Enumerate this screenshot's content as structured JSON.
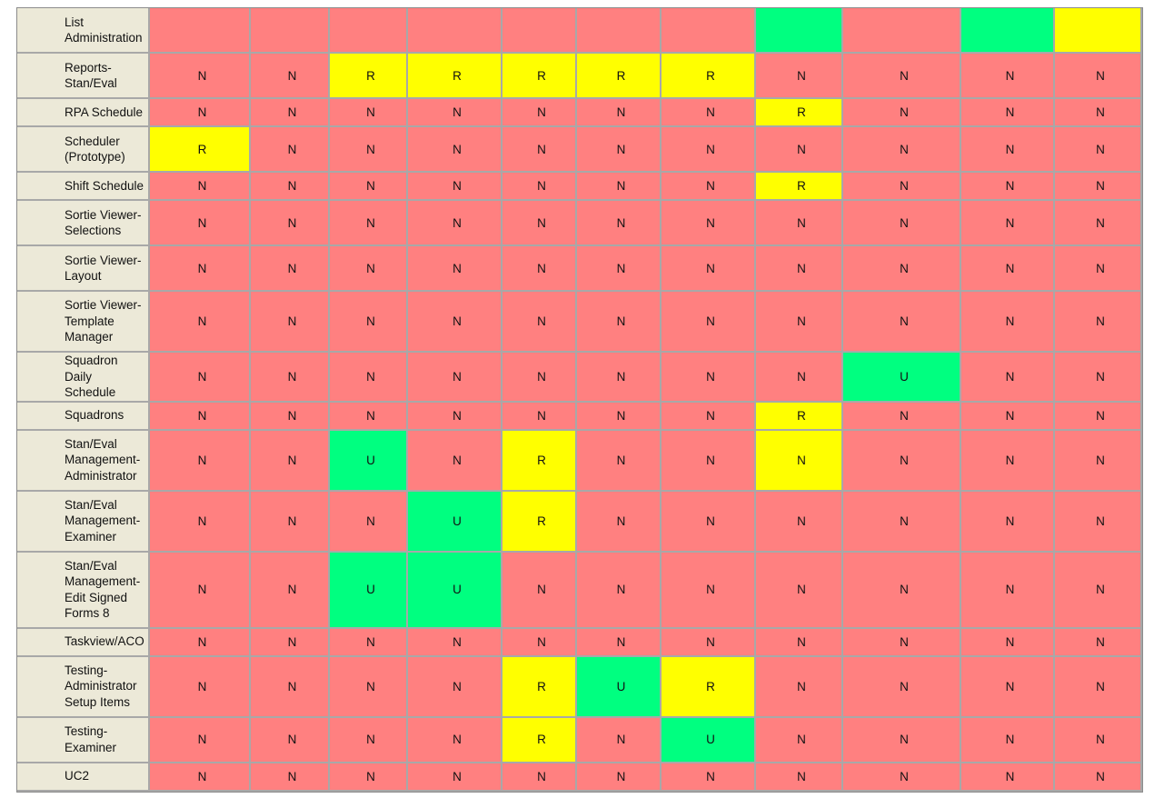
{
  "legend_colors": {
    "N": "#ff8080",
    "R": "#ffff00",
    "U": "#00ff80"
  },
  "rows": [
    {
      "name": "List\nAdministration",
      "cells": [
        "",
        "",
        "",
        "",
        "",
        "",
        "",
        "",
        "",
        "",
        ""
      ],
      "fill": [
        "N",
        "N",
        "N",
        "N",
        "N",
        "N",
        "N",
        "U",
        "N",
        "U",
        "R"
      ]
    },
    {
      "name": "Reports-\nStan/Eval",
      "cells": [
        "N",
        "N",
        "R",
        "R",
        "R",
        "R",
        "R",
        "N",
        "N",
        "N",
        "N"
      ]
    },
    {
      "name": "RPA Schedule",
      "cells": [
        "N",
        "N",
        "N",
        "N",
        "N",
        "N",
        "N",
        "R",
        "N",
        "N",
        "N"
      ]
    },
    {
      "name": "Scheduler\n(Prototype)",
      "cells": [
        "R",
        "N",
        "N",
        "N",
        "N",
        "N",
        "N",
        "N",
        "N",
        "N",
        "N"
      ]
    },
    {
      "name": "Shift Schedule",
      "cells": [
        "N",
        "N",
        "N",
        "N",
        "N",
        "N",
        "N",
        "R",
        "N",
        "N",
        "N"
      ]
    },
    {
      "name": "Sortie Viewer-\nSelections",
      "cells": [
        "N",
        "N",
        "N",
        "N",
        "N",
        "N",
        "N",
        "N",
        "N",
        "N",
        "N"
      ]
    },
    {
      "name": "Sortie Viewer-\nLayout",
      "cells": [
        "N",
        "N",
        "N",
        "N",
        "N",
        "N",
        "N",
        "N",
        "N",
        "N",
        "N"
      ]
    },
    {
      "name": "Sortie Viewer-\nTemplate\nManager",
      "cells": [
        "N",
        "N",
        "N",
        "N",
        "N",
        "N",
        "N",
        "N",
        "N",
        "N",
        "N"
      ]
    },
    {
      "name": "Squadron Daily\nSchedule",
      "cells": [
        "N",
        "N",
        "N",
        "N",
        "N",
        "N",
        "N",
        "N",
        "U",
        "N",
        "N"
      ]
    },
    {
      "name": "Squadrons",
      "cells": [
        "N",
        "N",
        "N",
        "N",
        "N",
        "N",
        "N",
        "R",
        "N",
        "N",
        "N"
      ]
    },
    {
      "name": "Stan/Eval\nManagement-\nAdministrator",
      "cells": [
        "N",
        "N",
        "U",
        "N",
        "R",
        "N",
        "N",
        "N",
        "N",
        "N",
        "N"
      ],
      "fill": [
        "N",
        "N",
        "U",
        "N",
        "R",
        "N",
        "N",
        "R",
        "N",
        "N",
        "N"
      ]
    },
    {
      "name": "Stan/Eval\nManagement-\nExaminer",
      "cells": [
        "N",
        "N",
        "N",
        "U",
        "R",
        "N",
        "N",
        "N",
        "N",
        "N",
        "N"
      ]
    },
    {
      "name": "Stan/Eval\nManagement-\nEdit Signed\nForms 8",
      "cells": [
        "N",
        "N",
        "U",
        "U",
        "N",
        "N",
        "N",
        "N",
        "N",
        "N",
        "N"
      ]
    },
    {
      "name": "Taskview/ACO",
      "cells": [
        "N",
        "N",
        "N",
        "N",
        "N",
        "N",
        "N",
        "N",
        "N",
        "N",
        "N"
      ]
    },
    {
      "name": "Testing-\nAdministrator\nSetup Items",
      "cells": [
        "N",
        "N",
        "N",
        "N",
        "R",
        "U",
        "R",
        "N",
        "N",
        "N",
        "N"
      ]
    },
    {
      "name": "Testing-\nExaminer",
      "cells": [
        "N",
        "N",
        "N",
        "N",
        "R",
        "N",
        "U",
        "N",
        "N",
        "N",
        "N"
      ]
    },
    {
      "name": "UC2",
      "cells": [
        "N",
        "N",
        "N",
        "N",
        "N",
        "N",
        "N",
        "N",
        "N",
        "N",
        "N"
      ]
    }
  ]
}
